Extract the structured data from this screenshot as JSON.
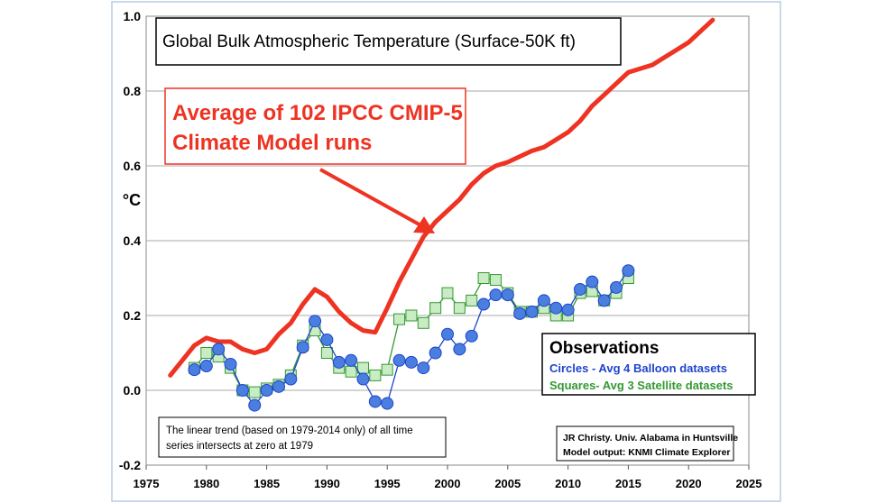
{
  "chart_data": {
    "type": "line",
    "title": "Global Bulk Atmospheric Temperature (Surface-50K ft)",
    "ylabel": "°C",
    "xlabel": "",
    "xlim": [
      1975,
      2025
    ],
    "ylim": [
      -0.2,
      1.0
    ],
    "x_ticks": [
      "1975",
      "1980",
      "1985",
      "1990",
      "1995",
      "2000",
      "2005",
      "2010",
      "2015",
      "2020",
      "2025"
    ],
    "y_ticks": [
      "-0.2",
      "0.0",
      "0.2",
      "0.4",
      "0.6",
      "0.8",
      "1.0"
    ],
    "grid": "horizontal",
    "series": [
      {
        "name": "Average of 102 IPCC CMIP-5 Climate Model runs",
        "color": "#ee3322",
        "marker": "none",
        "x": [
          1977,
          1978,
          1979,
          1980,
          1981,
          1982,
          1983,
          1984,
          1985,
          1986,
          1987,
          1988,
          1989,
          1990,
          1991,
          1992,
          1993,
          1994,
          1995,
          1996,
          1997,
          1998,
          1999,
          2000,
          2001,
          2002,
          2003,
          2004,
          2005,
          2006,
          2007,
          2008,
          2009,
          2010,
          2011,
          2012,
          2013,
          2014,
          2015,
          2016,
          2017,
          2018,
          2019,
          2020,
          2021,
          2022
        ],
        "values": [
          0.04,
          0.08,
          0.12,
          0.14,
          0.13,
          0.13,
          0.11,
          0.1,
          0.11,
          0.15,
          0.18,
          0.23,
          0.27,
          0.25,
          0.21,
          0.18,
          0.16,
          0.155,
          0.22,
          0.29,
          0.35,
          0.41,
          0.45,
          0.48,
          0.51,
          0.55,
          0.58,
          0.6,
          0.61,
          0.625,
          0.64,
          0.65,
          0.67,
          0.69,
          0.72,
          0.76,
          0.79,
          0.82,
          0.85,
          0.86,
          0.87,
          0.89,
          0.91,
          0.93,
          0.96,
          0.99
        ]
      },
      {
        "name": "Circles - Avg 4 Balloon datasets",
        "color": "#1f44cc",
        "marker": "circle",
        "x": [
          1979,
          1980,
          1981,
          1982,
          1983,
          1984,
          1985,
          1986,
          1987,
          1988,
          1989,
          1990,
          1991,
          1992,
          1993,
          1994,
          1995,
          1996,
          1997,
          1998,
          1999,
          2000,
          2001,
          2002,
          2003,
          2004,
          2005,
          2006,
          2007,
          2008,
          2009,
          2010,
          2011,
          2012,
          2013,
          2014,
          2015
        ],
        "values": [
          0.055,
          0.065,
          0.11,
          0.07,
          0.0,
          -0.04,
          0.0,
          0.01,
          0.03,
          0.115,
          0.185,
          0.135,
          0.075,
          0.08,
          0.03,
          -0.03,
          -0.035,
          0.08,
          0.075,
          0.06,
          0.1,
          0.15,
          0.11,
          0.145,
          0.23,
          0.255,
          0.255,
          0.205,
          0.21,
          0.24,
          0.22,
          0.215,
          0.27,
          0.29,
          0.24,
          0.275,
          0.32
        ]
      },
      {
        "name": "Squares- Avg 3 Satellite datasets",
        "color": "#339933",
        "marker": "square",
        "x": [
          1979,
          1980,
          1981,
          1982,
          1983,
          1984,
          1985,
          1986,
          1987,
          1988,
          1989,
          1990,
          1991,
          1992,
          1993,
          1994,
          1995,
          1996,
          1997,
          1998,
          1999,
          2000,
          2001,
          2002,
          2003,
          2004,
          2005,
          2006,
          2007,
          2008,
          2009,
          2010,
          2011,
          2012,
          2013,
          2014,
          2015
        ],
        "values": [
          0.06,
          0.1,
          0.09,
          0.06,
          0.0,
          -0.005,
          0.005,
          0.015,
          0.04,
          0.12,
          0.16,
          0.1,
          0.06,
          0.05,
          0.06,
          0.04,
          0.055,
          0.19,
          0.2,
          0.18,
          0.22,
          0.26,
          0.22,
          0.24,
          0.3,
          0.295,
          0.26,
          0.21,
          0.21,
          0.22,
          0.2,
          0.2,
          0.26,
          0.265,
          0.24,
          0.26,
          0.3
        ]
      }
    ],
    "annotations": {
      "model_label_line1": "Average of 102 IPCC CMIP-5",
      "model_label_line2": "Climate Model runs",
      "observations_heading": "Observations",
      "balloon_label": "Circles - Avg 4 Balloon datasets",
      "satellite_label": "Squares- Avg 3 Satellite datasets",
      "trend_note_line1": "The linear trend (based on 1979-2014 only) of all time",
      "trend_note_line2": "series intersects at zero at 1979",
      "credit_line1": "JR Christy. Univ. Alabama in Huntsville",
      "credit_line2": "Model output: KNMI Climate Explorer"
    }
  }
}
